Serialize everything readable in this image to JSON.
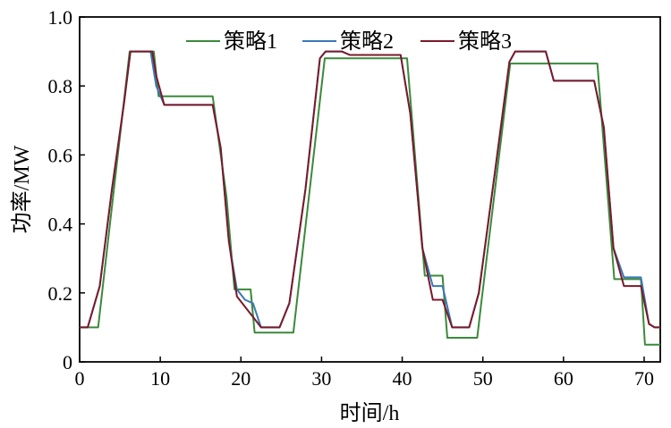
{
  "chart_data": {
    "type": "line",
    "xlabel": "时间/h",
    "ylabel": "功率/MW",
    "xlim": [
      0,
      72
    ],
    "ylim": [
      0,
      1.0
    ],
    "x_ticks": [
      0,
      10,
      20,
      30,
      40,
      50,
      60,
      70
    ],
    "y_ticks": [
      0,
      0.2,
      0.4,
      0.6,
      0.8,
      1.0
    ],
    "x_tick_labels": [
      "0",
      "10",
      "20",
      "30",
      "40",
      "50",
      "60",
      "70"
    ],
    "y_tick_labels": [
      "0",
      "0.2",
      "0.4",
      "0.6",
      "0.8",
      "1.0"
    ],
    "grid": false,
    "legend_position": "top",
    "series": [
      {
        "name": "策略1",
        "color": "#3a8a3a",
        "points": [
          [
            0,
            0.1
          ],
          [
            2.3,
            0.1
          ],
          [
            6.2,
            0.9
          ],
          [
            9.2,
            0.9
          ],
          [
            9.8,
            0.77
          ],
          [
            16.5,
            0.77
          ],
          [
            18.2,
            0.48
          ],
          [
            19.2,
            0.21
          ],
          [
            21.2,
            0.21
          ],
          [
            21.7,
            0.085
          ],
          [
            26.5,
            0.085
          ],
          [
            30.4,
            0.88
          ],
          [
            40.6,
            0.88
          ],
          [
            42.8,
            0.25
          ],
          [
            45.0,
            0.25
          ],
          [
            45.6,
            0.07
          ],
          [
            49.3,
            0.07
          ],
          [
            49.8,
            0.17
          ],
          [
            53.4,
            0.865
          ],
          [
            64.2,
            0.865
          ],
          [
            66.3,
            0.24
          ],
          [
            69.6,
            0.24
          ],
          [
            70.1,
            0.05
          ],
          [
            72,
            0.05
          ]
        ]
      },
      {
        "name": "策略2",
        "color": "#3a78b8",
        "points": [
          [
            0,
            0.1
          ],
          [
            1.0,
            0.1
          ],
          [
            2.5,
            0.22
          ],
          [
            4.0,
            0.5
          ],
          [
            5.5,
            0.75
          ],
          [
            6.3,
            0.9
          ],
          [
            8.8,
            0.9
          ],
          [
            9.5,
            0.8
          ],
          [
            10.5,
            0.745
          ],
          [
            16.5,
            0.745
          ],
          [
            17.5,
            0.62
          ],
          [
            18.5,
            0.35
          ],
          [
            19.5,
            0.21
          ],
          [
            20.5,
            0.18
          ],
          [
            21.5,
            0.17
          ],
          [
            22.5,
            0.1
          ],
          [
            24.8,
            0.1
          ],
          [
            26.0,
            0.17
          ],
          [
            28.0,
            0.5
          ],
          [
            29.8,
            0.88
          ],
          [
            30.5,
            0.9
          ],
          [
            32.5,
            0.9
          ],
          [
            33.5,
            0.89
          ],
          [
            39.8,
            0.89
          ],
          [
            41.0,
            0.72
          ],
          [
            42.5,
            0.33
          ],
          [
            43.8,
            0.22
          ],
          [
            45.0,
            0.22
          ],
          [
            46.2,
            0.1
          ],
          [
            48.3,
            0.1
          ],
          [
            49.5,
            0.2
          ],
          [
            51.5,
            0.55
          ],
          [
            53.3,
            0.87
          ],
          [
            54.0,
            0.9
          ],
          [
            57.8,
            0.9
          ],
          [
            58.8,
            0.815
          ],
          [
            63.8,
            0.815
          ],
          [
            65.0,
            0.68
          ],
          [
            66.2,
            0.33
          ],
          [
            67.5,
            0.245
          ],
          [
            69.6,
            0.245
          ],
          [
            70.6,
            0.11
          ],
          [
            71.3,
            0.1
          ],
          [
            72,
            0.1
          ]
        ]
      },
      {
        "name": "策略3",
        "color": "#7a1a2a",
        "points": [
          [
            0,
            0.1
          ],
          [
            1.0,
            0.1
          ],
          [
            2.5,
            0.22
          ],
          [
            4.0,
            0.5
          ],
          [
            5.5,
            0.75
          ],
          [
            6.3,
            0.9
          ],
          [
            9.0,
            0.9
          ],
          [
            9.5,
            0.83
          ],
          [
            10.5,
            0.745
          ],
          [
            16.5,
            0.745
          ],
          [
            17.5,
            0.62
          ],
          [
            18.5,
            0.35
          ],
          [
            19.5,
            0.19
          ],
          [
            20.5,
            0.16
          ],
          [
            21.5,
            0.13
          ],
          [
            22.5,
            0.1
          ],
          [
            24.8,
            0.1
          ],
          [
            26.0,
            0.17
          ],
          [
            28.0,
            0.5
          ],
          [
            29.8,
            0.88
          ],
          [
            30.5,
            0.9
          ],
          [
            32.5,
            0.9
          ],
          [
            33.5,
            0.89
          ],
          [
            39.8,
            0.89
          ],
          [
            41.0,
            0.72
          ],
          [
            42.5,
            0.33
          ],
          [
            43.8,
            0.18
          ],
          [
            45.0,
            0.18
          ],
          [
            46.2,
            0.1
          ],
          [
            48.3,
            0.1
          ],
          [
            49.5,
            0.2
          ],
          [
            51.5,
            0.55
          ],
          [
            53.3,
            0.87
          ],
          [
            54.0,
            0.9
          ],
          [
            57.8,
            0.9
          ],
          [
            58.8,
            0.815
          ],
          [
            63.8,
            0.815
          ],
          [
            65.0,
            0.68
          ],
          [
            66.2,
            0.33
          ],
          [
            67.5,
            0.22
          ],
          [
            69.6,
            0.22
          ],
          [
            70.6,
            0.11
          ],
          [
            71.3,
            0.1
          ],
          [
            72,
            0.1
          ]
        ]
      }
    ]
  }
}
